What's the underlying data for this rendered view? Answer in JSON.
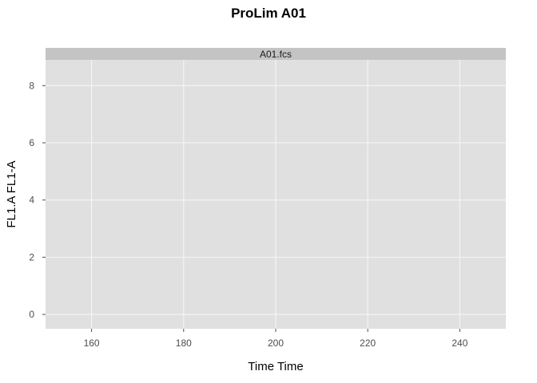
{
  "chart_data": {
    "type": "scatter",
    "title": "ProLim A01",
    "panel_label": "A01.fcs",
    "xlabel": "Time Time",
    "ylabel": "FL1.A FL1-A",
    "xlim": [
      150,
      250
    ],
    "ylim": [
      -0.5,
      8.9
    ],
    "x_ticks": [
      160,
      180,
      200,
      220,
      240
    ],
    "y_ticks": [
      0,
      2,
      4,
      6,
      8
    ],
    "grid": true,
    "legend": "none",
    "series": [],
    "colors": {
      "panel_background": "#e0e0e0",
      "strip_background": "#c4c4c4",
      "grid_line": "#f5f5f5",
      "tick_label": "#4d4d4d"
    }
  }
}
